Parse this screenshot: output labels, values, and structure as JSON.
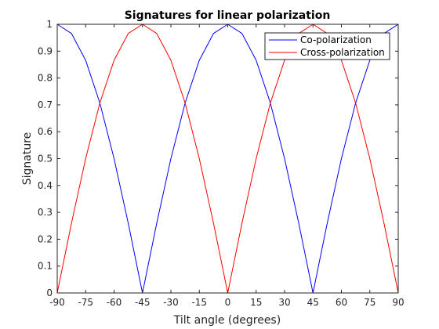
{
  "chart_data": {
    "type": "line",
    "title": "Signatures for linear polarization",
    "xlabel": "Tilt angle (degrees)",
    "ylabel": "Signature",
    "xlim": [
      -90,
      90
    ],
    "ylim": [
      0,
      1
    ],
    "x_ticks": [
      -90,
      -75,
      -60,
      -45,
      -30,
      -15,
      0,
      15,
      30,
      45,
      60,
      75,
      90
    ],
    "y_ticks": [
      0,
      0.1,
      0.2,
      0.3,
      0.4,
      0.5,
      0.6,
      0.7,
      0.8,
      0.9,
      1
    ],
    "x_tick_labels": [
      "-90",
      "-75",
      "-60",
      "-45",
      "-30",
      "-15",
      "0",
      "15",
      "30",
      "45",
      "60",
      "75",
      "90"
    ],
    "y_tick_labels": [
      "0",
      "0.1",
      "0.2",
      "0.3",
      "0.4",
      "0.5",
      "0.6",
      "0.7",
      "0.8",
      "0.9",
      "1"
    ],
    "x": [
      -90,
      -82.5,
      -75,
      -67.5,
      -60,
      -52.5,
      -45,
      -37.5,
      -30,
      -22.5,
      -15,
      -7.5,
      0,
      7.5,
      15,
      22.5,
      30,
      37.5,
      45,
      52.5,
      60,
      67.5,
      75,
      82.5,
      90
    ],
    "series": [
      {
        "name": "Co-polarization",
        "color": "#0000ff",
        "values": [
          1,
          0.966,
          0.866,
          0.707,
          0.5,
          0.259,
          0,
          0.259,
          0.5,
          0.707,
          0.866,
          0.966,
          1,
          0.966,
          0.866,
          0.707,
          0.5,
          0.259,
          0,
          0.259,
          0.5,
          0.707,
          0.866,
          0.966,
          1
        ]
      },
      {
        "name": "Cross-polarization",
        "color": "#ff0000",
        "values": [
          0,
          0.259,
          0.5,
          0.707,
          0.866,
          0.966,
          1,
          0.966,
          0.866,
          0.707,
          0.5,
          0.259,
          0,
          0.259,
          0.5,
          0.707,
          0.866,
          0.966,
          1,
          0.966,
          0.866,
          0.707,
          0.5,
          0.259,
          0
        ]
      }
    ],
    "grid": false,
    "legend_position": "top-right"
  }
}
